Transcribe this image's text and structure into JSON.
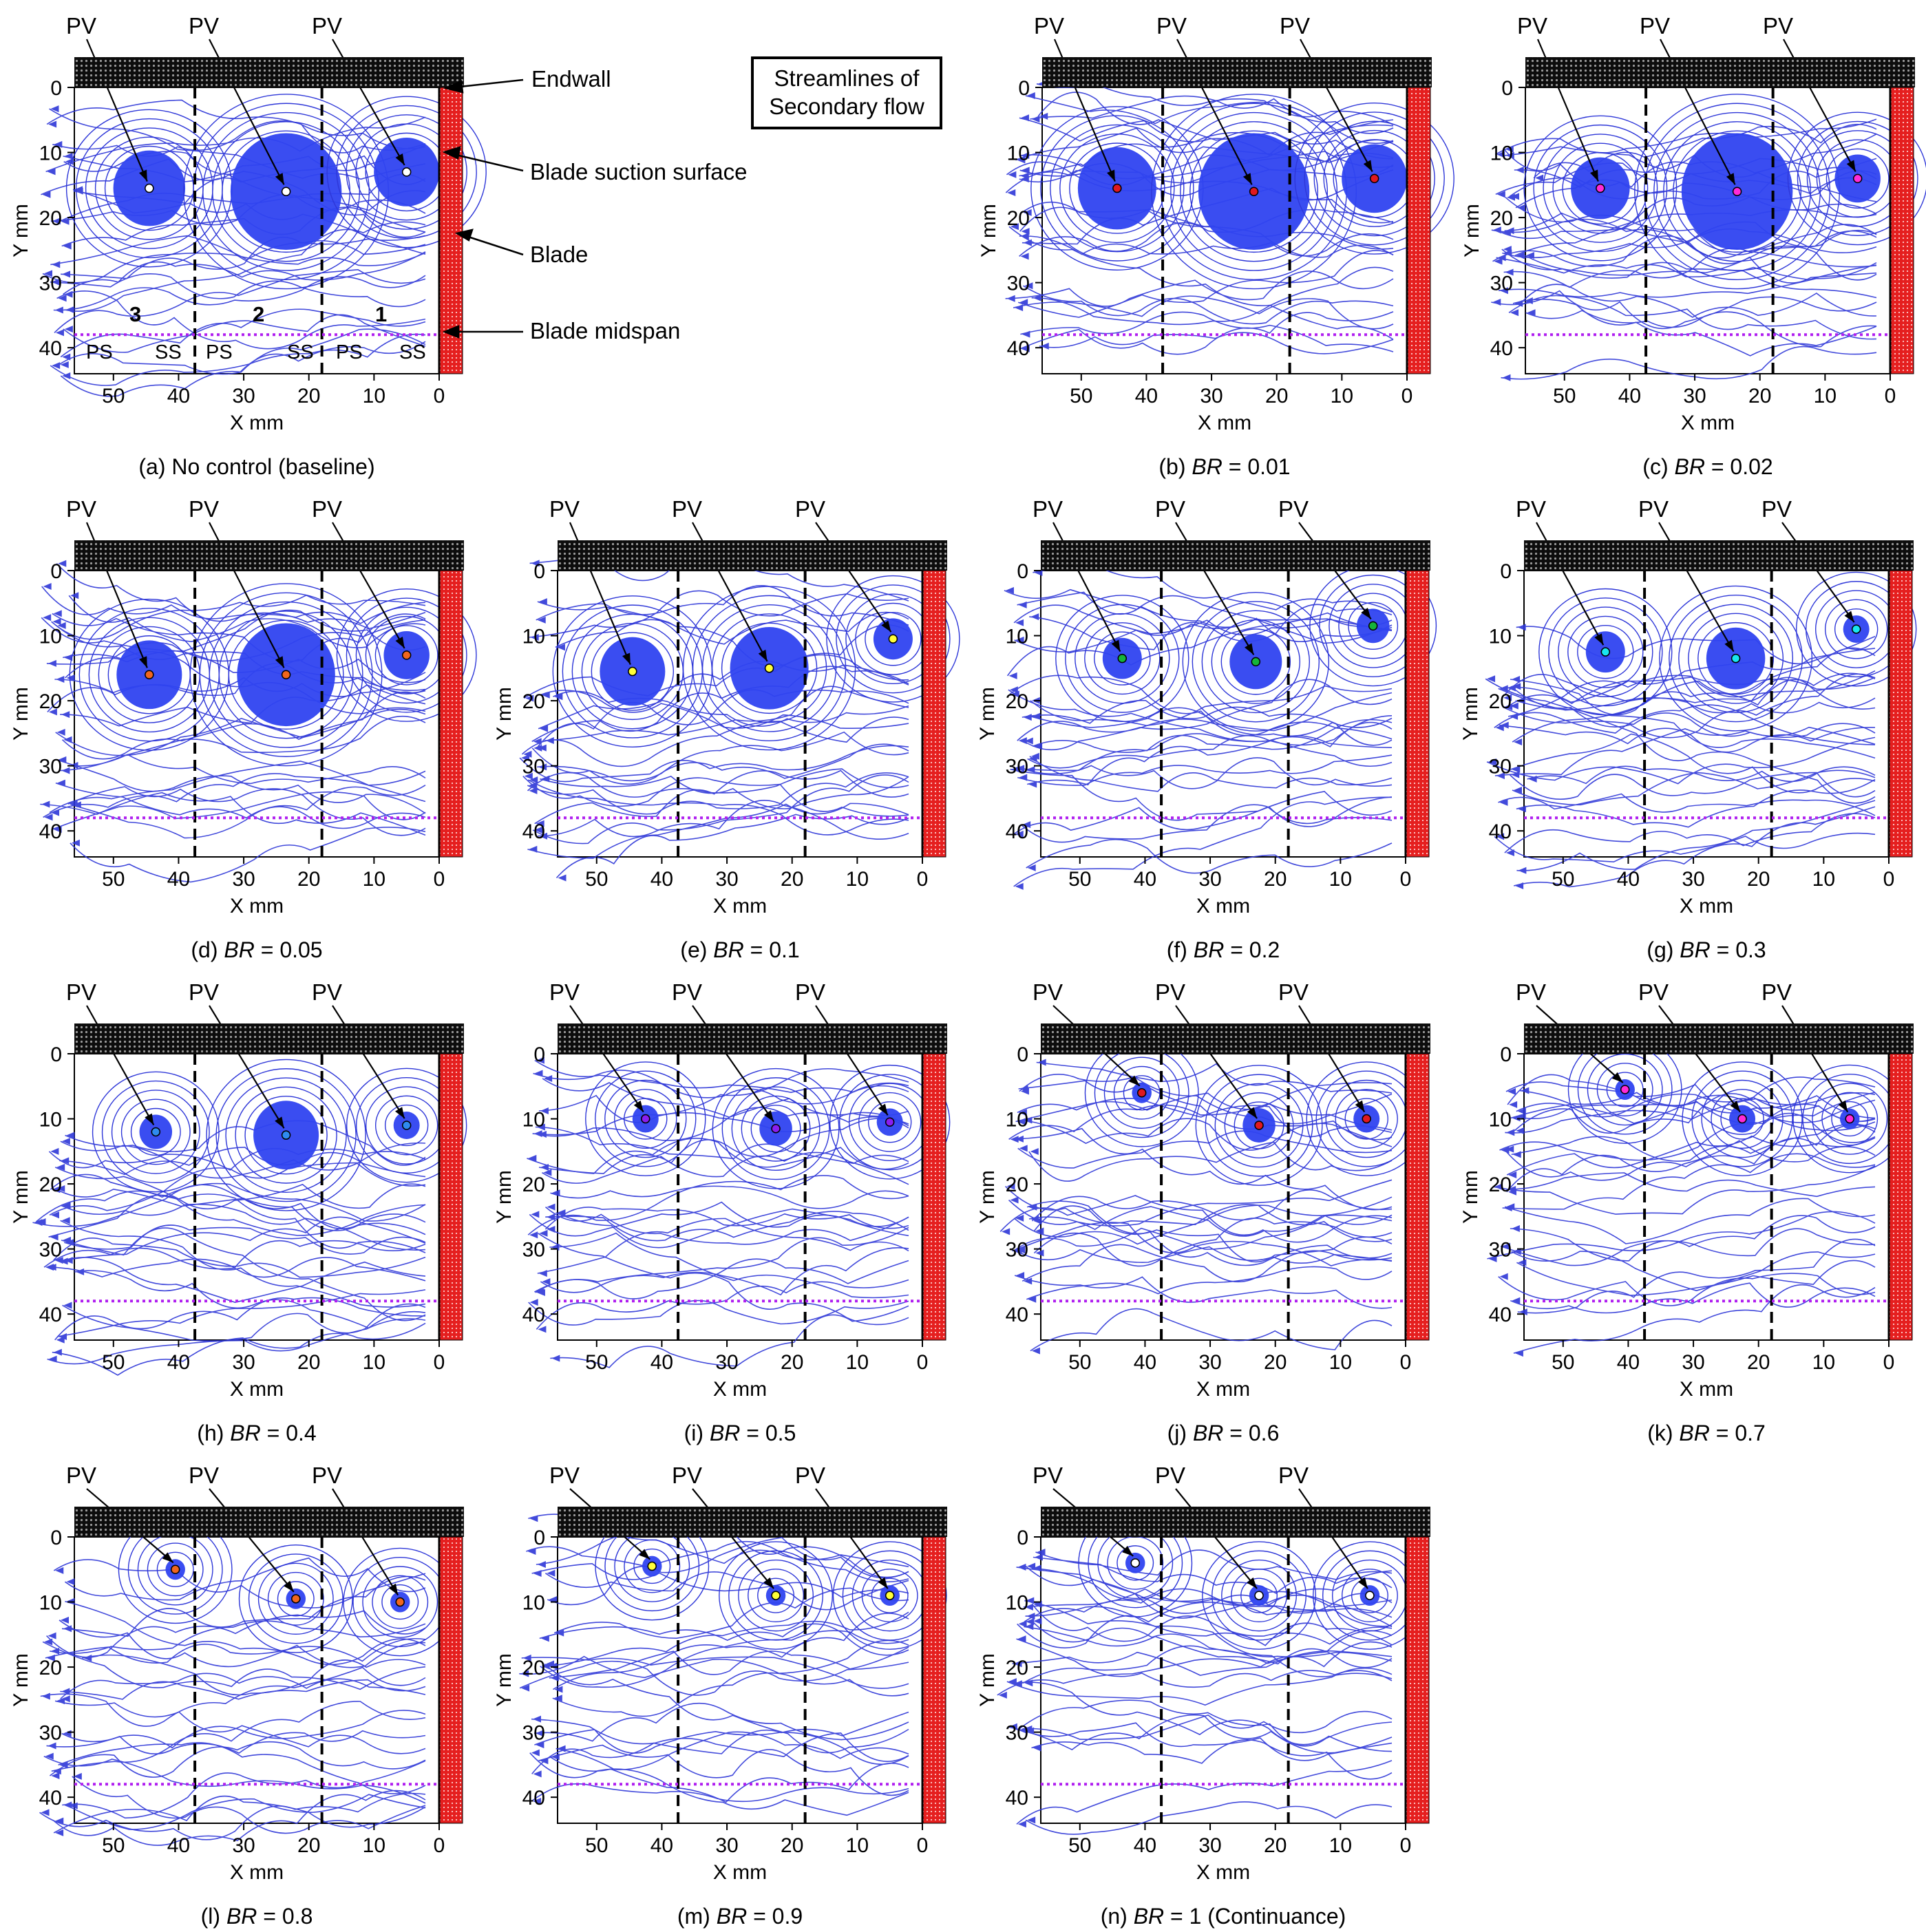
{
  "figure": {
    "title_box_line1": "Streamlines of",
    "title_box_line2": "Secondary flow"
  },
  "annotations": {
    "endwall": "Endwall",
    "suction_surface": "Blade suction surface",
    "blade": "Blade",
    "midspan": "Blade midspan",
    "passage_numbers": [
      "3",
      "2",
      "1"
    ],
    "surface_labels": [
      "PS",
      "SS",
      "PS",
      "SS",
      "PS",
      "SS"
    ],
    "vortex_label": "PV"
  },
  "colors": {
    "streamline": "#2e37d8",
    "vortex_fill": "#2f43f0",
    "blade": "#e51f1f",
    "midspan": "#b01ff0",
    "endwall": "#111111"
  },
  "chart_data": [
    {
      "panel": "a",
      "prefix": "(a) ",
      "br": "",
      "caption": "No control (baseline)",
      "suffix": "",
      "type": "streamline",
      "xlabel": "X mm",
      "ylabel": "Y mm",
      "xlim": [
        56,
        0
      ],
      "ylim": [
        44,
        0
      ],
      "xticks": [
        "50",
        "40",
        "30",
        "20",
        "10",
        "0"
      ],
      "yticks": [
        "0",
        "10",
        "20",
        "30",
        "40"
      ],
      "pv": [
        {
          "x": 44.5,
          "y": 15.5,
          "r": 5.5,
          "color": "#ffffff"
        },
        {
          "x": 23.5,
          "y": 16,
          "r": 8.5,
          "color": "#ffffff"
        },
        {
          "x": 5,
          "y": 13,
          "r": 5,
          "color": "#ffffff"
        }
      ]
    },
    {
      "panel": "b",
      "prefix": "(b) ",
      "br": "BR",
      "caption": "",
      "suffix": " = 0.01",
      "type": "streamline",
      "xlabel": "X mm",
      "ylabel": "Y mm",
      "xlim": [
        56,
        0
      ],
      "ylim": [
        44,
        0
      ],
      "xticks": [
        "50",
        "40",
        "30",
        "20",
        "10",
        "0"
      ],
      "yticks": [
        "0",
        "10",
        "20",
        "30",
        "40"
      ],
      "pv": [
        {
          "x": 44.5,
          "y": 15.5,
          "r": 6,
          "color": "#e0191f"
        },
        {
          "x": 23.5,
          "y": 16,
          "r": 8.5,
          "color": "#e0191f"
        },
        {
          "x": 5,
          "y": 14,
          "r": 5,
          "color": "#e0191f"
        }
      ]
    },
    {
      "panel": "c",
      "prefix": "(c) ",
      "br": "BR",
      "caption": "",
      "suffix": " = 0.02",
      "type": "streamline",
      "xlabel": "X mm",
      "ylabel": "Y mm",
      "xlim": [
        56,
        0
      ],
      "ylim": [
        44,
        0
      ],
      "xticks": [
        "50",
        "40",
        "30",
        "20",
        "10",
        "0"
      ],
      "yticks": [
        "0",
        "10",
        "20",
        "30",
        "40"
      ],
      "pv": [
        {
          "x": 44.5,
          "y": 15.5,
          "r": 4.5,
          "color": "#ff2bd8"
        },
        {
          "x": 23.5,
          "y": 16,
          "r": 8.5,
          "color": "#ff2bd8"
        },
        {
          "x": 5,
          "y": 14,
          "r": 3.5,
          "color": "#ff2bd8"
        }
      ]
    },
    {
      "panel": "d",
      "prefix": "(d) ",
      "br": "BR",
      "caption": "",
      "suffix": " = 0.05",
      "type": "streamline",
      "xlabel": "X mm",
      "ylabel": "Y mm",
      "xlim": [
        56,
        0
      ],
      "ylim": [
        44,
        0
      ],
      "xticks": [
        "50",
        "40",
        "30",
        "20",
        "10",
        "0"
      ],
      "yticks": [
        "0",
        "10",
        "20",
        "30",
        "40"
      ],
      "pv": [
        {
          "x": 44.5,
          "y": 16,
          "r": 5,
          "color": "#f0661e"
        },
        {
          "x": 23.5,
          "y": 16,
          "r": 7.5,
          "color": "#f0661e"
        },
        {
          "x": 5,
          "y": 13,
          "r": 3.5,
          "color": "#f0661e"
        }
      ]
    },
    {
      "panel": "e",
      "prefix": "(e) ",
      "br": "BR",
      "caption": "",
      "suffix": " = 0.1",
      "type": "streamline",
      "xlabel": "X mm",
      "ylabel": "Y mm",
      "xlim": [
        56,
        0
      ],
      "ylim": [
        44,
        0
      ],
      "xticks": [
        "50",
        "40",
        "30",
        "20",
        "10",
        "0"
      ],
      "yticks": [
        "0",
        "10",
        "20",
        "30",
        "40"
      ],
      "pv": [
        {
          "x": 44.5,
          "y": 15.5,
          "r": 5,
          "color": "#ffff3a"
        },
        {
          "x": 23.5,
          "y": 15,
          "r": 6,
          "color": "#ffff3a"
        },
        {
          "x": 4.5,
          "y": 10.5,
          "r": 3,
          "color": "#ffff3a"
        }
      ]
    },
    {
      "panel": "f",
      "prefix": "(f) ",
      "br": "BR",
      "caption": "",
      "suffix": " = 0.2",
      "type": "streamline",
      "xlabel": "X mm",
      "ylabel": "Y mm",
      "xlim": [
        56,
        0
      ],
      "ylim": [
        44,
        0
      ],
      "xticks": [
        "50",
        "40",
        "30",
        "20",
        "10",
        "0"
      ],
      "yticks": [
        "0",
        "10",
        "20",
        "30",
        "40"
      ],
      "pv": [
        {
          "x": 43.5,
          "y": 13.5,
          "r": 3,
          "color": "#16b43a"
        },
        {
          "x": 23,
          "y": 14,
          "r": 4,
          "color": "#16b43a"
        },
        {
          "x": 5,
          "y": 8.5,
          "r": 2.5,
          "color": "#16b43a"
        }
      ]
    },
    {
      "panel": "g",
      "prefix": "(g) ",
      "br": "BR",
      "caption": "",
      "suffix": " = 0.3",
      "type": "streamline",
      "xlabel": "X mm",
      "ylabel": "Y mm",
      "xlim": [
        56,
        0
      ],
      "ylim": [
        44,
        0
      ],
      "xticks": [
        "50",
        "40",
        "30",
        "20",
        "10",
        "0"
      ],
      "yticks": [
        "0",
        "10",
        "20",
        "30",
        "40"
      ],
      "pv": [
        {
          "x": 43.5,
          "y": 12.5,
          "r": 3,
          "color": "#19e6f0"
        },
        {
          "x": 23.5,
          "y": 13.5,
          "r": 4.5,
          "color": "#19e6f0"
        },
        {
          "x": 5,
          "y": 9,
          "r": 2,
          "color": "#19e6f0"
        }
      ]
    },
    {
      "panel": "h",
      "prefix": "(h) ",
      "br": "BR",
      "caption": "",
      "suffix": " = 0.4",
      "type": "streamline",
      "xlabel": "X mm",
      "ylabel": "Y mm",
      "xlim": [
        56,
        0
      ],
      "ylim": [
        44,
        0
      ],
      "xticks": [
        "50",
        "40",
        "30",
        "20",
        "10",
        "0"
      ],
      "yticks": [
        "0",
        "10",
        "20",
        "30",
        "40"
      ],
      "pv": [
        {
          "x": 43.5,
          "y": 12,
          "r": 2.5,
          "color": "#2f8bf0"
        },
        {
          "x": 23.5,
          "y": 12.5,
          "r": 5,
          "color": "#2f8bf0"
        },
        {
          "x": 5,
          "y": 11,
          "r": 2,
          "color": "#2f8bf0"
        }
      ]
    },
    {
      "panel": "i",
      "prefix": "(i) ",
      "br": "BR",
      "caption": "",
      "suffix": " = 0.5",
      "type": "streamline",
      "xlabel": "X mm",
      "ylabel": "Y mm",
      "xlim": [
        56,
        0
      ],
      "ylim": [
        44,
        0
      ],
      "xticks": [
        "50",
        "40",
        "30",
        "20",
        "10",
        "0"
      ],
      "yticks": [
        "0",
        "10",
        "20",
        "30",
        "40"
      ],
      "pv": [
        {
          "x": 42.5,
          "y": 10,
          "r": 2,
          "color": "#8a1ef0"
        },
        {
          "x": 22.5,
          "y": 11.5,
          "r": 2.5,
          "color": "#8a1ef0"
        },
        {
          "x": 5,
          "y": 10.5,
          "r": 2,
          "color": "#8a1ef0"
        }
      ]
    },
    {
      "panel": "j",
      "prefix": "(j) ",
      "br": "BR",
      "caption": "",
      "suffix": " = 0.6",
      "type": "streamline",
      "xlabel": "X mm",
      "ylabel": "Y mm",
      "xlim": [
        56,
        0
      ],
      "ylim": [
        44,
        0
      ],
      "xticks": [
        "50",
        "40",
        "30",
        "20",
        "10",
        "0"
      ],
      "yticks": [
        "0",
        "10",
        "20",
        "30",
        "40"
      ],
      "pv": [
        {
          "x": 40.5,
          "y": 6,
          "r": 1.5,
          "color": "#e0191f"
        },
        {
          "x": 22.5,
          "y": 11,
          "r": 2.5,
          "color": "#e0191f"
        },
        {
          "x": 6,
          "y": 10,
          "r": 2,
          "color": "#e0191f"
        }
      ]
    },
    {
      "panel": "k",
      "prefix": "(k) ",
      "br": "BR",
      "caption": "",
      "suffix": " = 0.7",
      "type": "streamline",
      "xlabel": "X mm",
      "ylabel": "Y mm",
      "xlim": [
        56,
        0
      ],
      "ylim": [
        44,
        0
      ],
      "xticks": [
        "50",
        "40",
        "30",
        "20",
        "10",
        "0"
      ],
      "yticks": [
        "0",
        "10",
        "20",
        "30",
        "40"
      ],
      "pv": [
        {
          "x": 40.5,
          "y": 5.5,
          "r": 1.5,
          "color": "#ff2bd8"
        },
        {
          "x": 22.5,
          "y": 10,
          "r": 2,
          "color": "#ff2bd8"
        },
        {
          "x": 6,
          "y": 10,
          "r": 1.5,
          "color": "#ff2bd8"
        }
      ]
    },
    {
      "panel": "l",
      "prefix": "(l) ",
      "br": "BR",
      "caption": "",
      "suffix": " = 0.8",
      "type": "streamline",
      "xlabel": "X mm",
      "ylabel": "Y mm",
      "xlim": [
        56,
        0
      ],
      "ylim": [
        44,
        0
      ],
      "xticks": [
        "50",
        "40",
        "30",
        "20",
        "10",
        "0"
      ],
      "yticks": [
        "0",
        "10",
        "20",
        "30",
        "40"
      ],
      "pv": [
        {
          "x": 40.5,
          "y": 5,
          "r": 1.5,
          "color": "#f0661e"
        },
        {
          "x": 22,
          "y": 9.5,
          "r": 1.5,
          "color": "#f0661e"
        },
        {
          "x": 6,
          "y": 10,
          "r": 1.5,
          "color": "#f0661e"
        }
      ]
    },
    {
      "panel": "m",
      "prefix": "(m) ",
      "br": "BR",
      "caption": "",
      "suffix": " = 0.9",
      "type": "streamline",
      "xlabel": "X mm",
      "ylabel": "Y mm",
      "xlim": [
        56,
        0
      ],
      "ylim": [
        44,
        0
      ],
      "xticks": [
        "50",
        "40",
        "30",
        "20",
        "10",
        "0"
      ],
      "yticks": [
        "0",
        "10",
        "20",
        "30",
        "40"
      ],
      "pv": [
        {
          "x": 41.5,
          "y": 4.5,
          "r": 1.5,
          "color": "#ffff3a"
        },
        {
          "x": 22.5,
          "y": 9,
          "r": 1.5,
          "color": "#ffff3a"
        },
        {
          "x": 5,
          "y": 9,
          "r": 1.5,
          "color": "#ffff3a"
        }
      ]
    },
    {
      "panel": "n",
      "prefix": "(n) ",
      "br": "BR",
      "caption": "",
      "suffix": " = 1 (Continuance)",
      "type": "streamline",
      "xlabel": "X mm",
      "ylabel": "Y mm",
      "xlim": [
        56,
        0
      ],
      "ylim": [
        44,
        0
      ],
      "xticks": [
        "50",
        "40",
        "30",
        "20",
        "10",
        "0"
      ],
      "yticks": [
        "0",
        "10",
        "20",
        "30",
        "40"
      ],
      "pv": [
        {
          "x": 41.5,
          "y": 4,
          "r": 1.5,
          "color": "#ffffff"
        },
        {
          "x": 22.5,
          "y": 9,
          "r": 1.5,
          "color": "#ffffff"
        },
        {
          "x": 5.5,
          "y": 9,
          "r": 1.5,
          "color": "#ffffff"
        }
      ]
    }
  ]
}
